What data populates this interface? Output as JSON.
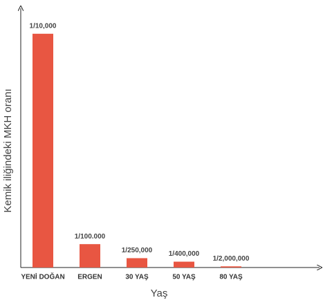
{
  "chart_data": {
    "type": "bar",
    "xlabel": "Yaş",
    "ylabel": "Kemik iliğindeki MKH oranı",
    "categories": [
      "YENİ DOĞAN",
      "ERGEN",
      "30 YAŞ",
      "50 YAŞ",
      "80 YAŞ"
    ],
    "values": [
      0.0001,
      1e-05,
      4e-06,
      2.5e-06,
      5e-07
    ],
    "value_labels": [
      "1/10,000",
      "1/100.000",
      "1/250,000",
      "1/400,000",
      "1/2,000,000"
    ],
    "color": "#e85642",
    "ylim": [
      0,
      0.00011
    ]
  }
}
